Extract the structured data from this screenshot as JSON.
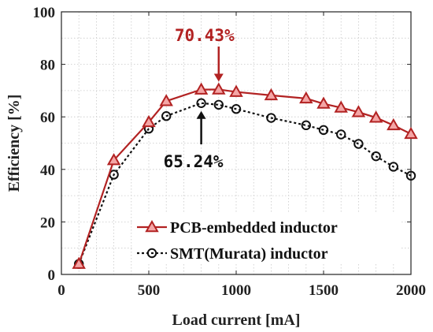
{
  "chart_data": {
    "type": "line",
    "xlabel": "Load current [mA]",
    "ylabel": "Efficiency [%]",
    "xlim": [
      0,
      2000
    ],
    "ylim": [
      0,
      100
    ],
    "xticks": [
      "0",
      "500",
      "1000",
      "1500",
      "2000"
    ],
    "yticks": [
      "0",
      "20",
      "40",
      "60",
      "80",
      "100"
    ],
    "grid": true,
    "legend_position": "bottom-right",
    "series": [
      {
        "name": "PCB-embedded inductor",
        "color": "#b22222",
        "marker": "triangle",
        "x": [
          100,
          300,
          500,
          600,
          800,
          900,
          1000,
          1200,
          1400,
          1500,
          1600,
          1700,
          1800,
          1900,
          2000
        ],
        "y": [
          4,
          43.5,
          58,
          66,
          70.4,
          70.43,
          69.5,
          68.2,
          67,
          65,
          63.5,
          61.8,
          59.7,
          56.8,
          53.5
        ]
      },
      {
        "name": "SMT(Murata) inductor",
        "color": "#111111",
        "marker": "circle",
        "x": [
          100,
          300,
          500,
          600,
          800,
          900,
          1000,
          1200,
          1400,
          1500,
          1600,
          1700,
          1800,
          1900,
          2000
        ],
        "y": [
          4,
          38,
          55.5,
          60.3,
          65.24,
          64.6,
          63,
          59.6,
          56.8,
          55,
          53.3,
          49.7,
          45,
          41,
          37.6
        ]
      }
    ],
    "annotations": [
      {
        "text": "70.43%",
        "color": "#b22222",
        "x": 900,
        "y": 70.43,
        "arrow": "down"
      },
      {
        "text": "65.24%",
        "color": "#111111",
        "x": 800,
        "y": 65.24,
        "arrow": "up"
      }
    ]
  }
}
